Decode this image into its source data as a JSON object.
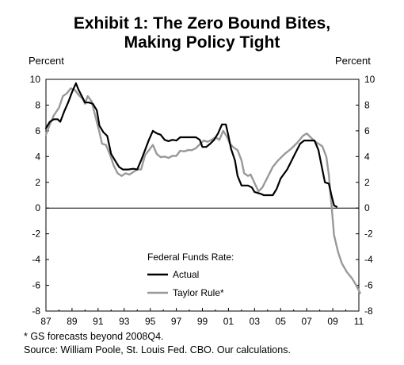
{
  "chart_data": {
    "type": "line",
    "title": "Exhibit 1: The Zero Bound Bites,",
    "subtitle": "Making Policy Tight",
    "ylabel_left": "Percent",
    "ylabel_right": "Percent",
    "xlim": [
      1987,
      2011
    ],
    "ylim": [
      -8,
      10
    ],
    "x_ticks": [
      {
        "x": 1987,
        "label": "87"
      },
      {
        "x": 1989,
        "label": "89"
      },
      {
        "x": 1991,
        "label": "91"
      },
      {
        "x": 1993,
        "label": "93"
      },
      {
        "x": 1995,
        "label": "95"
      },
      {
        "x": 1997,
        "label": "97"
      },
      {
        "x": 1999,
        "label": "99"
      },
      {
        "x": 2001,
        "label": "01"
      },
      {
        "x": 2003,
        "label": "03"
      },
      {
        "x": 2005,
        "label": "05"
      },
      {
        "x": 2007,
        "label": "07"
      },
      {
        "x": 2009,
        "label": "09"
      },
      {
        "x": 2011,
        "label": "11"
      }
    ],
    "y_ticks": [
      10,
      8,
      6,
      4,
      2,
      0,
      -2,
      -4,
      -6,
      -8
    ],
    "legend": {
      "title": "Federal Funds Rate:",
      "position": "bottom-center"
    },
    "series": [
      {
        "name": "Actual",
        "color": "#000000",
        "points": [
          [
            1987.0,
            6.2
          ],
          [
            1987.3,
            6.7
          ],
          [
            1987.6,
            6.9
          ],
          [
            1987.9,
            6.9
          ],
          [
            1988.1,
            6.7
          ],
          [
            1988.4,
            7.5
          ],
          [
            1988.7,
            8.2
          ],
          [
            1989.0,
            9.0
          ],
          [
            1989.3,
            9.7
          ],
          [
            1989.5,
            9.2
          ],
          [
            1989.8,
            8.6
          ],
          [
            1990.0,
            8.2
          ],
          [
            1990.3,
            8.2
          ],
          [
            1990.6,
            8.1
          ],
          [
            1990.9,
            7.6
          ],
          [
            1991.1,
            6.4
          ],
          [
            1991.4,
            5.9
          ],
          [
            1991.7,
            5.6
          ],
          [
            1992.0,
            4.2
          ],
          [
            1992.3,
            3.7
          ],
          [
            1992.6,
            3.2
          ],
          [
            1992.9,
            3.0
          ],
          [
            1993.3,
            3.0
          ],
          [
            1993.7,
            3.05
          ],
          [
            1994.0,
            3.0
          ],
          [
            1994.3,
            3.7
          ],
          [
            1994.6,
            4.5
          ],
          [
            1994.9,
            5.3
          ],
          [
            1995.2,
            6.0
          ],
          [
            1995.5,
            5.8
          ],
          [
            1995.8,
            5.7
          ],
          [
            1996.1,
            5.3
          ],
          [
            1996.4,
            5.2
          ],
          [
            1996.7,
            5.3
          ],
          [
            1997.0,
            5.25
          ],
          [
            1997.3,
            5.5
          ],
          [
            1997.6,
            5.5
          ],
          [
            1997.9,
            5.5
          ],
          [
            1998.2,
            5.5
          ],
          [
            1998.5,
            5.5
          ],
          [
            1998.8,
            5.3
          ],
          [
            1999.0,
            4.75
          ],
          [
            1999.3,
            4.75
          ],
          [
            1999.6,
            5.0
          ],
          [
            1999.9,
            5.3
          ],
          [
            2000.2,
            5.8
          ],
          [
            2000.5,
            6.5
          ],
          [
            2000.8,
            6.5
          ],
          [
            2001.0,
            5.6
          ],
          [
            2001.2,
            4.6
          ],
          [
            2001.5,
            3.7
          ],
          [
            2001.7,
            2.5
          ],
          [
            2002.0,
            1.75
          ],
          [
            2002.5,
            1.75
          ],
          [
            2002.8,
            1.6
          ],
          [
            2003.0,
            1.25
          ],
          [
            2003.5,
            1.1
          ],
          [
            2003.7,
            1.0
          ],
          [
            2004.4,
            1.0
          ],
          [
            2004.7,
            1.5
          ],
          [
            2005.0,
            2.3
          ],
          [
            2005.5,
            3.0
          ],
          [
            2006.0,
            4.0
          ],
          [
            2006.5,
            5.0
          ],
          [
            2006.8,
            5.25
          ],
          [
            2007.2,
            5.25
          ],
          [
            2007.6,
            5.25
          ],
          [
            2007.9,
            4.5
          ],
          [
            2008.2,
            3.0
          ],
          [
            2008.4,
            2.0
          ],
          [
            2008.7,
            1.9
          ],
          [
            2008.9,
            1.0
          ],
          [
            2009.1,
            0.2
          ],
          [
            2009.3,
            0.1
          ]
        ]
      },
      {
        "name": "Taylor Rule*",
        "color": "#999999",
        "points": [
          [
            1987.0,
            5.7
          ],
          [
            1987.3,
            6.5
          ],
          [
            1987.6,
            7.2
          ],
          [
            1988.0,
            7.8
          ],
          [
            1988.3,
            8.7
          ],
          [
            1988.6,
            8.9
          ],
          [
            1988.9,
            9.3
          ],
          [
            1989.2,
            9.2
          ],
          [
            1989.5,
            8.8
          ],
          [
            1989.8,
            8.5
          ],
          [
            1990.0,
            8.1
          ],
          [
            1990.2,
            8.7
          ],
          [
            1990.5,
            8.3
          ],
          [
            1990.8,
            7.1
          ],
          [
            1991.1,
            5.9
          ],
          [
            1991.3,
            5.0
          ],
          [
            1991.6,
            4.9
          ],
          [
            1991.9,
            4.2
          ],
          [
            1992.2,
            3.3
          ],
          [
            1992.5,
            2.7
          ],
          [
            1992.8,
            2.5
          ],
          [
            1993.1,
            2.7
          ],
          [
            1993.4,
            2.6
          ],
          [
            1993.7,
            2.8
          ],
          [
            1994.0,
            3.0
          ],
          [
            1994.3,
            3.0
          ],
          [
            1994.6,
            4.1
          ],
          [
            1994.9,
            4.5
          ],
          [
            1995.2,
            4.9
          ],
          [
            1995.5,
            4.2
          ],
          [
            1995.8,
            3.95
          ],
          [
            1996.1,
            4.0
          ],
          [
            1996.4,
            3.9
          ],
          [
            1996.7,
            4.05
          ],
          [
            1997.0,
            4.05
          ],
          [
            1997.3,
            4.45
          ],
          [
            1997.6,
            4.4
          ],
          [
            1997.9,
            4.5
          ],
          [
            1998.2,
            4.5
          ],
          [
            1998.5,
            4.65
          ],
          [
            1998.8,
            4.95
          ],
          [
            1999.1,
            5.25
          ],
          [
            1999.4,
            5.15
          ],
          [
            1999.7,
            5.3
          ],
          [
            2000.0,
            5.5
          ],
          [
            2000.3,
            5.3
          ],
          [
            2000.6,
            6.0
          ],
          [
            2000.9,
            5.5
          ],
          [
            2001.1,
            5.0
          ],
          [
            2001.4,
            4.7
          ],
          [
            2001.7,
            4.5
          ],
          [
            2002.0,
            3.7
          ],
          [
            2002.2,
            2.7
          ],
          [
            2002.5,
            2.5
          ],
          [
            2002.7,
            2.6
          ],
          [
            2003.0,
            1.95
          ],
          [
            2003.3,
            1.3
          ],
          [
            2003.6,
            1.6
          ],
          [
            2004.0,
            2.4
          ],
          [
            2004.4,
            3.2
          ],
          [
            2004.8,
            3.7
          ],
          [
            2005.3,
            4.2
          ],
          [
            2005.8,
            4.6
          ],
          [
            2006.3,
            5.1
          ],
          [
            2006.7,
            5.6
          ],
          [
            2007.0,
            5.8
          ],
          [
            2007.3,
            5.5
          ],
          [
            2007.6,
            5.2
          ],
          [
            2007.9,
            5.0
          ],
          [
            2008.2,
            4.8
          ],
          [
            2008.5,
            4.0
          ],
          [
            2008.7,
            2.6
          ],
          [
            2008.9,
            0.3
          ],
          [
            2009.1,
            -2.1
          ],
          [
            2009.4,
            -3.4
          ],
          [
            2009.7,
            -4.3
          ],
          [
            2010.1,
            -5.0
          ],
          [
            2010.5,
            -5.5
          ],
          [
            2010.8,
            -6.0
          ],
          [
            2011.1,
            -6.6
          ]
        ]
      }
    ]
  },
  "footnotes": [
    "* GS forecasts beyond 2008Q4.",
    "Source: William Poole, St. Louis Fed. CBO. Our calculations."
  ]
}
